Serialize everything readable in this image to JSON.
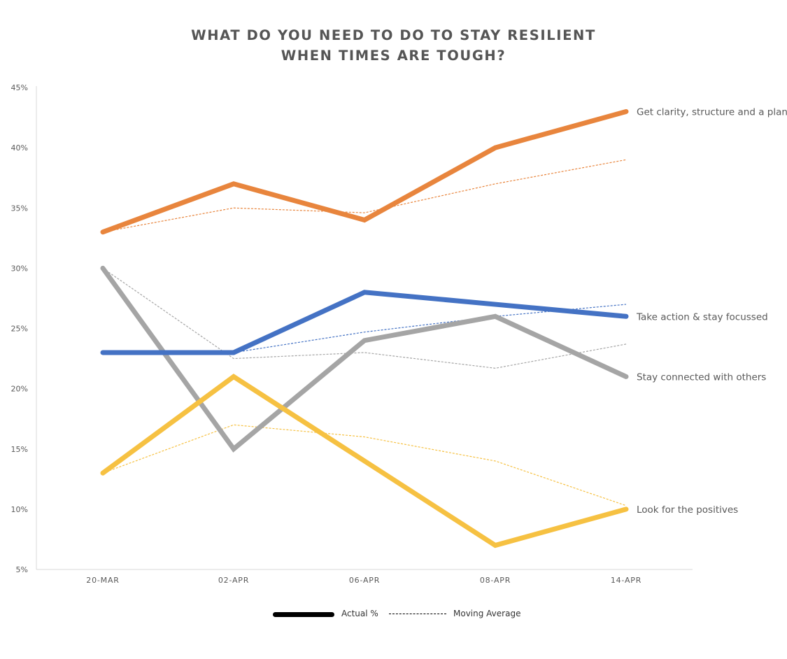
{
  "title_lines": [
    "WHAT DO YOU NEED TO DO TO STAY RESILIENT",
    "WHEN TIMES ARE TOUGH?"
  ],
  "legend": {
    "solid_label": "Actual %",
    "dashed_label": "Moving Average"
  },
  "chart_data": {
    "type": "line",
    "title": "WHAT DO YOU NEED TO DO TO STAY RESILIENT WHEN TIMES ARE TOUGH?",
    "categories": [
      "20-MAR",
      "02-APR",
      "06-APR",
      "08-APR",
      "14-APR"
    ],
    "xlabel": "",
    "ylabel": "",
    "ylim": [
      5,
      45
    ],
    "yticks": [
      5,
      10,
      15,
      20,
      25,
      30,
      35,
      40,
      45
    ],
    "ytick_labels": [
      "5%",
      "10%",
      "15%",
      "20%",
      "25%",
      "30%",
      "35%",
      "40%",
      "45%"
    ],
    "grid": false,
    "legend_position": "bottom",
    "series": [
      {
        "name": "Get clarity, structure and a plan",
        "color": "#E8853D",
        "values": [
          33,
          37,
          34,
          40,
          43
        ],
        "moving_average": [
          33,
          35,
          34.6,
          37,
          39
        ]
      },
      {
        "name": "Take action & stay focussed",
        "color": "#4472C4",
        "values": [
          23,
          23,
          28,
          27,
          26
        ],
        "moving_average": [
          23,
          23,
          24.7,
          26,
          27
        ]
      },
      {
        "name": "Stay connected with others",
        "color": "#A5A5A5",
        "values": [
          30,
          15,
          24,
          26,
          21
        ],
        "moving_average": [
          30,
          22.5,
          23,
          21.7,
          23.7
        ]
      },
      {
        "name": "Look for the positives",
        "color": "#F6C142",
        "values": [
          13,
          21,
          14,
          7,
          10
        ],
        "moving_average": [
          13,
          17,
          16,
          14,
          10.3
        ]
      }
    ]
  }
}
